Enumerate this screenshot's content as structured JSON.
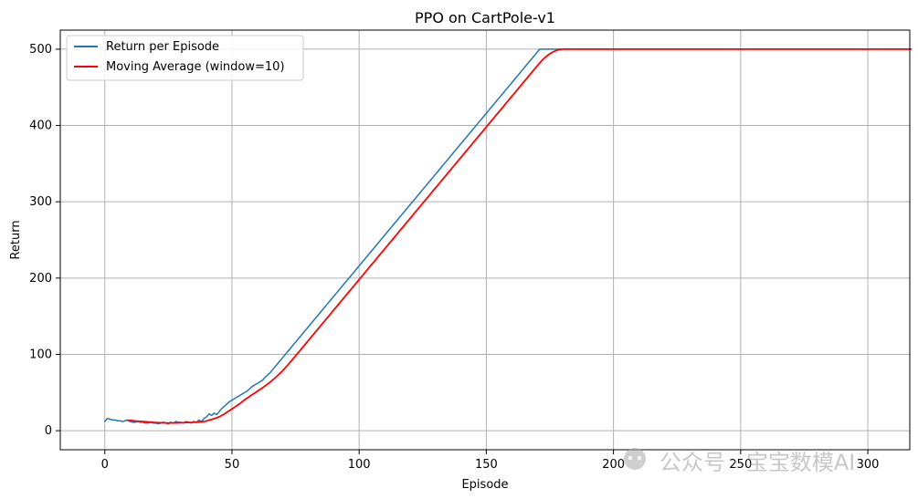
{
  "chart_data": {
    "type": "line",
    "title": "PPO on CartPole-v1",
    "xlabel": "Episode",
    "ylabel": "Return",
    "xlim": [
      -17.5,
      316.5
    ],
    "ylim": [
      -25,
      525
    ],
    "xticks": [
      0,
      50,
      100,
      150,
      200,
      250,
      300
    ],
    "yticks": [
      0,
      100,
      200,
      300,
      400,
      500
    ],
    "grid": true,
    "legend_position": "top-left",
    "series": [
      {
        "name": "Return per Episode",
        "color": "#1f77b4",
        "x_start": 0,
        "values": [
          12,
          16,
          15,
          14,
          14,
          13,
          13,
          12,
          13,
          14,
          12,
          11,
          11,
          12,
          11,
          11,
          10,
          10,
          11,
          10,
          10,
          9,
          10,
          11,
          10,
          9,
          11,
          10,
          12,
          11,
          11,
          10,
          12,
          11,
          10,
          12,
          11,
          14,
          12,
          16,
          18,
          22,
          20,
          23,
          21,
          25,
          29,
          32,
          35,
          38,
          40,
          42,
          44,
          46,
          48,
          50,
          52,
          55,
          58,
          60,
          62,
          64,
          66,
          70,
          73,
          76,
          80,
          84,
          88,
          92,
          96,
          100,
          104,
          108,
          112,
          116,
          120,
          124,
          128,
          132,
          136,
          140,
          144,
          148,
          152,
          156,
          160,
          164,
          168,
          172,
          176,
          180,
          184,
          188,
          192,
          196,
          200,
          204,
          208,
          212,
          216,
          220,
          224,
          228,
          232,
          236,
          240,
          244,
          248,
          252,
          256,
          260,
          264,
          268,
          272,
          276,
          280,
          284,
          288,
          292,
          296,
          300,
          304,
          308,
          312,
          316,
          320,
          324,
          328,
          332,
          336,
          340,
          344,
          348,
          352,
          356,
          360,
          364,
          368,
          372,
          376,
          380,
          384,
          388,
          392,
          396,
          400,
          404,
          408,
          412,
          416,
          420,
          424,
          428,
          432,
          436,
          440,
          444,
          448,
          452,
          456,
          460,
          464,
          468,
          472,
          476,
          480,
          484,
          488,
          492,
          496,
          500,
          500,
          500,
          500,
          500,
          500,
          500,
          500,
          500,
          500,
          500,
          500,
          500,
          500,
          500,
          500,
          500,
          500,
          500,
          500,
          500,
          500,
          500,
          500,
          500,
          500,
          500,
          500,
          500,
          500,
          500,
          500,
          500,
          500,
          500,
          500,
          500,
          500,
          500,
          500,
          500,
          500,
          500,
          500,
          500,
          500,
          500,
          500,
          500,
          500,
          500,
          500,
          500,
          500,
          500,
          500,
          500,
          500,
          500,
          500,
          500,
          500,
          500,
          500,
          500,
          500,
          500,
          500,
          500,
          500,
          500,
          500,
          500,
          500,
          500,
          500,
          500,
          500,
          500,
          500,
          500,
          500,
          500,
          500,
          500,
          500,
          500,
          500,
          500,
          500,
          500,
          500,
          500,
          500,
          500,
          500,
          500,
          500,
          500,
          500,
          500,
          500,
          500,
          500,
          500,
          500,
          500,
          500,
          500,
          500,
          500,
          500,
          500,
          500,
          500,
          500,
          500,
          500,
          500,
          500,
          500,
          500,
          500,
          500,
          500,
          500,
          500,
          500,
          500,
          500,
          500,
          500,
          500,
          500,
          500,
          500,
          500,
          500,
          500,
          500,
          500,
          500,
          500,
          500,
          500,
          500,
          500
        ]
      },
      {
        "name": "Moving Average (window=10)",
        "color": "#ff0000",
        "x_start": 9,
        "values": []
      }
    ]
  },
  "watermark": {
    "text": "公众号 · 宝宝数模AI"
  }
}
